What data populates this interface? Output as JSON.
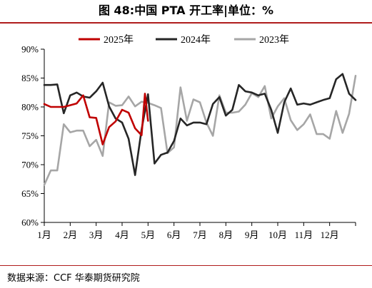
{
  "title": "图 48:中国 PTA 开工率|单位：%",
  "source": "数据来源：CCF  华泰期货研究院",
  "chart_data": {
    "type": "line",
    "title": "",
    "xlabel": "",
    "ylabel": "",
    "ylim": [
      60,
      90
    ],
    "xlim": [
      1,
      13
    ],
    "yticks": [
      "60%",
      "65%",
      "70%",
      "75%",
      "80%",
      "85%",
      "90%"
    ],
    "ytick_values": [
      60,
      65,
      70,
      75,
      80,
      85,
      90
    ],
    "xticks": [
      "1月",
      "2月",
      "3月",
      "4月",
      "5月",
      "6月",
      "7月",
      "8月",
      "9月",
      "10月",
      "11月",
      "12月"
    ],
    "xtick_values": [
      1,
      2,
      3,
      4,
      5,
      6,
      7,
      8,
      9,
      10,
      11,
      12
    ],
    "grid": false,
    "legend_position": "top",
    "series": [
      {
        "name": "2025年",
        "color": "#c00000",
        "x": [
          1.0,
          1.25,
          1.5,
          1.75,
          2.0,
          2.25,
          2.5,
          2.75,
          3.0,
          3.25,
          3.5,
          3.75,
          4.0,
          4.25,
          4.5,
          4.75,
          4.88,
          5.0
        ],
        "y": [
          80.5,
          80.0,
          80.0,
          80.0,
          80.3,
          80.6,
          82.0,
          78.2,
          78.1,
          73.5,
          76.5,
          77.5,
          79.5,
          79.0,
          76.3,
          75.1,
          82.3,
          77.6
        ]
      },
      {
        "name": "2024年",
        "color": "#262626",
        "x": [
          1.0,
          1.25,
          1.5,
          1.75,
          2.0,
          2.25,
          2.5,
          2.75,
          3.0,
          3.25,
          3.5,
          3.75,
          4.0,
          4.25,
          4.5,
          4.75,
          5.0,
          5.25,
          5.5,
          5.75,
          6.0,
          6.25,
          6.5,
          6.75,
          7.0,
          7.25,
          7.5,
          7.75,
          8.0,
          8.25,
          8.5,
          8.75,
          9.0,
          9.25,
          9.5,
          9.75,
          10.0,
          10.25,
          10.5,
          10.75,
          11.0,
          11.25,
          11.5,
          11.75,
          12.0,
          12.25,
          12.5,
          12.75,
          13.0
        ],
        "y": [
          83.8,
          83.8,
          83.9,
          78.9,
          82.0,
          82.5,
          81.8,
          81.6,
          82.7,
          84.2,
          80.1,
          78.0,
          77.3,
          74.5,
          68.2,
          76.1,
          82.2,
          70.2,
          71.7,
          72.1,
          74.1,
          78.0,
          76.8,
          77.3,
          77.3,
          77.0,
          80.5,
          81.7,
          78.5,
          79.5,
          83.8,
          82.7,
          82.5,
          82.0,
          82.3,
          79.5,
          75.5,
          80.8,
          83.2,
          80.4,
          80.6,
          80.4,
          80.8,
          81.2,
          81.5,
          84.8,
          85.7,
          82.3,
          81.2
        ]
      },
      {
        "name": "2023年",
        "color": "#a6a6a6",
        "x": [
          1.0,
          1.25,
          1.5,
          1.75,
          2.0,
          2.25,
          2.5,
          2.75,
          3.0,
          3.25,
          3.5,
          3.75,
          4.0,
          4.25,
          4.5,
          4.75,
          5.0,
          5.25,
          5.5,
          5.75,
          6.0,
          6.25,
          6.5,
          6.75,
          7.0,
          7.25,
          7.5,
          7.75,
          8.0,
          8.25,
          8.5,
          8.75,
          9.0,
          9.25,
          9.5,
          9.75,
          10.0,
          10.25,
          10.5,
          10.75,
          11.0,
          11.25,
          11.5,
          11.75,
          12.0,
          12.25,
          12.5,
          12.75,
          13.0
        ],
        "y": [
          66.5,
          69.0,
          69.0,
          77.0,
          75.6,
          75.9,
          75.9,
          73.2,
          74.3,
          71.5,
          80.8,
          80.2,
          80.3,
          81.8,
          80.1,
          80.9,
          80.7,
          80.3,
          79.8,
          72.0,
          73.0,
          83.4,
          77.6,
          81.3,
          80.8,
          77.3,
          75.0,
          82.0,
          79.0,
          79.0,
          79.2,
          80.4,
          82.4,
          81.7,
          83.6,
          78.0,
          80.1,
          81.5,
          77.7,
          76.0,
          77.0,
          78.7,
          75.3,
          75.3,
          74.5,
          79.3,
          75.5,
          78.8,
          85.4
        ]
      }
    ]
  }
}
